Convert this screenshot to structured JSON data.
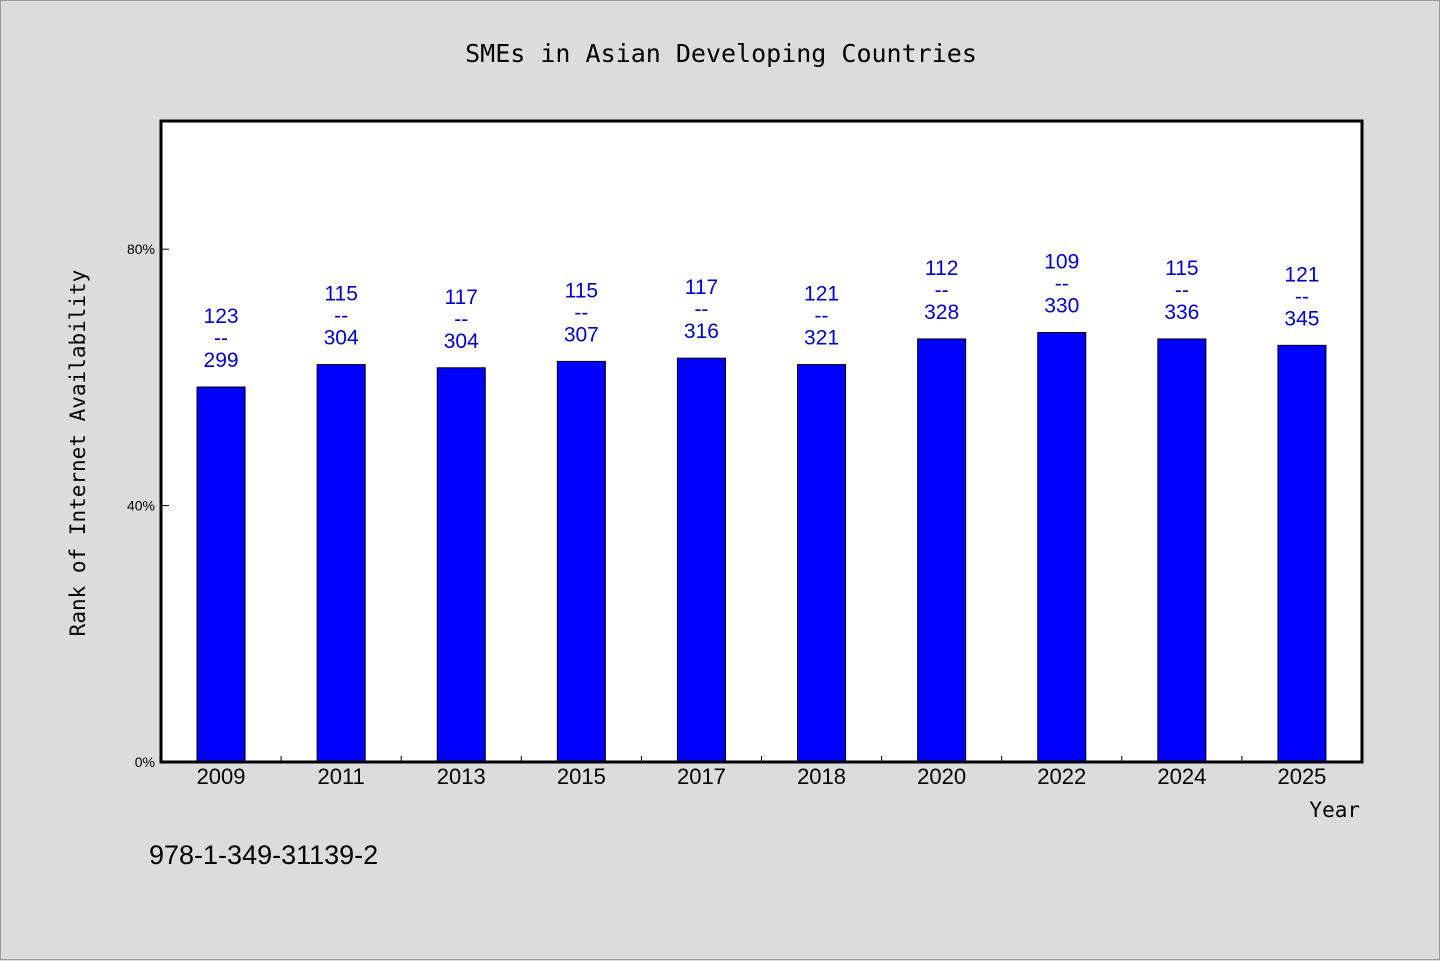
{
  "chart_data": {
    "type": "bar",
    "title": "SMEs in Asian Developing Countries",
    "xlabel": "Year",
    "ylabel": "Rank of Internet Availability",
    "categories": [
      "2009",
      "2011",
      "2013",
      "2015",
      "2017",
      "2018",
      "2020",
      "2022",
      "2024",
      "2025"
    ],
    "values": [
      58.5,
      62.0,
      61.5,
      62.5,
      63.0,
      62.0,
      66.0,
      67.0,
      66.0,
      65.0
    ],
    "data_labels": [
      [
        "123",
        "--",
        "299"
      ],
      [
        "115",
        "--",
        "304"
      ],
      [
        "117",
        "--",
        "304"
      ],
      [
        "115",
        "--",
        "307"
      ],
      [
        "117",
        "--",
        "316"
      ],
      [
        "121",
        "--",
        "321"
      ],
      [
        "112",
        "--",
        "328"
      ],
      [
        "109",
        "--",
        "330"
      ],
      [
        "115",
        "--",
        "336"
      ],
      [
        "121",
        "--",
        "345"
      ]
    ],
    "ylim": [
      0,
      100
    ],
    "yticks": [
      0,
      40,
      80
    ],
    "ytick_labels": [
      "0%",
      "40%",
      "80%"
    ],
    "grid": false,
    "bar_color": "#0000ff",
    "label_color": "#0000cc",
    "background_color": "#dcdcdc",
    "plot_background_color": "#ffffff"
  },
  "footnote": "978-1-349-31139-2"
}
